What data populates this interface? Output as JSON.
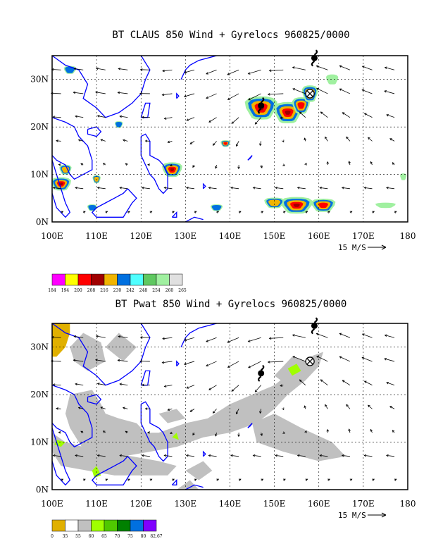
{
  "panels": [
    {
      "id": "claus",
      "title": "BT CLAUS 850 Wind + Gyrelocs 960825/0000",
      "lat_labels": [
        "30N",
        "20N",
        "10N",
        "0N"
      ],
      "lon_labels": [
        "100E",
        "110E",
        "120E",
        "130E",
        "140E",
        "150E",
        "160E",
        "170E",
        "180"
      ],
      "vector_ref_label": "15 M/S",
      "colorbar": {
        "colors": [
          "#ff00ff",
          "#ffff00",
          "#ff0000",
          "#a00000",
          "#f0b400",
          "#0070e0",
          "#50ffff",
          "#5fc860",
          "#a0f0a0",
          "#e0e0e0"
        ],
        "tick_labels": [
          "184",
          "194",
          "200",
          "208",
          "216",
          "230",
          "242",
          "248",
          "254",
          "260",
          "265"
        ]
      }
    },
    {
      "id": "pwat",
      "title": "BT Pwat 850 Wind + Gyrelocs 960825/0000",
      "lat_labels": [
        "30N",
        "20N",
        "10N",
        "0N"
      ],
      "lon_labels": [
        "100E",
        "110E",
        "120E",
        "130E",
        "140E",
        "150E",
        "160E",
        "170E",
        "180"
      ],
      "vector_ref_label": "15 M/S",
      "colorbar": {
        "colors": [
          "#e0b000",
          "#ffffff",
          "#c0c0c0",
          "#a0ff00",
          "#50c800",
          "#008000",
          "#0070e0",
          "#8000ff"
        ],
        "tick_labels": [
          "0",
          "35",
          "55",
          "60",
          "65",
          "70",
          "75",
          "80",
          "82.67"
        ]
      }
    }
  ],
  "colors": {
    "coast": "#0000ff",
    "grid": "#000000",
    "vector": "#000000",
    "gray_fill": "#c0c0c0",
    "frame": "#000000"
  },
  "map_extent": {
    "lon_range": [
      100,
      180
    ],
    "lat_range": [
      0,
      35
    ]
  },
  "markers": [
    {
      "type": "cyclone-symbol",
      "lon": 159,
      "lat": 34.5
    },
    {
      "type": "cyclone-symbol",
      "lon": 147,
      "lat": 24.5
    },
    {
      "type": "crossed-circle",
      "lon": 158,
      "lat": 27
    }
  ]
}
